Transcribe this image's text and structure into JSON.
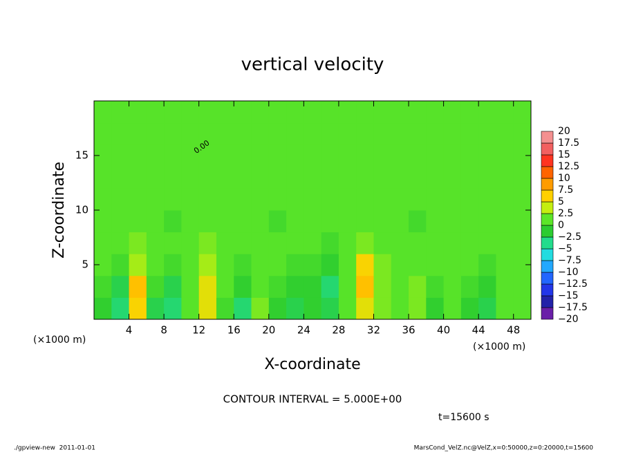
{
  "chart_data": {
    "type": "heatmap",
    "title": "vertical velocity",
    "x_label": "X-coordinate",
    "y_label": "Z-coordinate",
    "x_unit": "(×1000 m)",
    "y_unit": "(×1000 m)",
    "contour_interval": "CONTOUR INTERVAL = 5.000E+00",
    "time_label": "t=15600 s",
    "footer_left": "./gpview-new  2011-01-01",
    "footer_right": "MarsCond_VelZ.nc@VelZ,x=0:50000,z=0:20000,t=15600",
    "contour_label": "0.00",
    "xlim": [
      0,
      50
    ],
    "ylim": [
      0,
      20
    ],
    "xticks": [
      4,
      8,
      12,
      16,
      20,
      24,
      28,
      32,
      36,
      40,
      44,
      48
    ],
    "yticks": [
      5,
      10,
      15
    ],
    "x": [
      1,
      3,
      5,
      7,
      9,
      11,
      13,
      15,
      17,
      19,
      21,
      23,
      25,
      27,
      29,
      31,
      33,
      35,
      37,
      39,
      41,
      43,
      45,
      47,
      49
    ],
    "y": [
      1,
      3,
      5,
      7,
      9,
      11,
      13,
      15,
      17,
      19
    ],
    "values": [
      [
        -1,
        -3,
        6,
        -2,
        -3,
        1,
        5,
        0,
        -3,
        2,
        -1,
        -2,
        -1,
        -2,
        1,
        5,
        2,
        1,
        2,
        -1,
        1,
        -1,
        -2,
        1,
        1
      ],
      [
        0,
        -2,
        7,
        0,
        -2,
        1,
        5,
        1,
        -1,
        1,
        0,
        -1,
        -1,
        -3,
        1,
        7,
        2,
        1,
        2,
        0,
        1,
        0,
        -1,
        1,
        1
      ],
      [
        1,
        0,
        3,
        1,
        0,
        1,
        3,
        1,
        0,
        1,
        1,
        0,
        0,
        -1,
        1,
        6,
        2,
        1,
        1,
        1,
        1,
        1,
        0,
        1,
        1
      ],
      [
        1,
        1,
        2,
        1,
        1,
        1,
        2,
        1,
        1,
        1,
        1,
        1,
        1,
        0,
        1,
        2,
        1,
        1,
        1,
        1,
        1,
        1,
        1,
        1,
        1
      ],
      [
        1,
        1,
        1,
        1,
        0,
        1,
        1,
        1,
        1,
        1,
        0,
        1,
        1,
        1,
        1,
        1,
        1,
        1,
        0,
        1,
        1,
        1,
        1,
        1,
        1
      ],
      [
        1,
        1,
        1,
        1,
        1,
        1,
        1,
        1,
        1,
        1,
        1,
        1,
        1,
        1,
        1,
        1,
        1,
        1,
        1,
        1,
        1,
        1,
        1,
        1,
        1
      ],
      [
        1,
        1,
        1,
        1,
        1,
        1,
        1,
        1,
        1,
        1,
        1,
        1,
        1,
        1,
        1,
        1,
        1,
        1,
        1,
        1,
        1,
        1,
        1,
        1,
        1
      ],
      [
        1,
        1,
        1,
        1,
        1,
        1,
        1,
        1,
        1,
        1,
        1,
        1,
        1,
        1,
        1,
        1,
        1,
        1,
        1,
        1,
        1,
        1,
        1,
        1,
        1
      ],
      [
        1,
        1,
        1,
        1,
        1,
        1,
        1,
        1,
        1,
        1,
        1,
        1,
        1,
        1,
        1,
        1,
        1,
        1,
        1,
        1,
        1,
        1,
        1,
        1,
        1
      ],
      [
        1,
        1,
        1,
        1,
        1,
        1,
        1,
        1,
        1,
        1,
        1,
        1,
        1,
        1,
        1,
        1,
        1,
        1,
        1,
        1,
        1,
        1,
        1,
        1,
        1
      ]
    ],
    "colorbar": {
      "ticks": [
        {
          "value": -20,
          "label": "−20"
        },
        {
          "value": -17.5,
          "label": "−17.5"
        },
        {
          "value": -15,
          "label": "−15"
        },
        {
          "value": -12.5,
          "label": "−12.5"
        },
        {
          "value": -10,
          "label": "−10"
        },
        {
          "value": -7.5,
          "label": "−7.5"
        },
        {
          "value": -5,
          "label": "−5"
        },
        {
          "value": -2.5,
          "label": "−2.5"
        },
        0,
        2.5,
        5,
        7.5,
        10,
        12.5,
        15,
        17.5,
        20
      ],
      "colors": [
        "#6a1fa8",
        "#2222a8",
        "#2236e8",
        "#2266ff",
        "#22a8ff",
        "#22dce0",
        "#22dc8c",
        "#2ccc30",
        "#5ce628",
        "#c4ee10",
        "#ffd000",
        "#ff9c00",
        "#ff6400",
        "#ff3420",
        "#f26060",
        "#f49090"
      ]
    }
  }
}
